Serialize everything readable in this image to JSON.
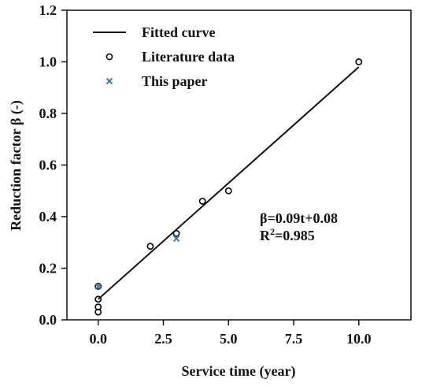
{
  "chart_data": {
    "type": "scatter",
    "xlabel": "Service time (year)",
    "ylabel": "Reduction factor β (-)",
    "xlim": [
      -1.2,
      12.0
    ],
    "ylim": [
      0.0,
      1.2
    ],
    "x_ticks": [
      0.0,
      2.5,
      5.0,
      7.5,
      10.0
    ],
    "x_tick_labels": [
      "0.0",
      "2.5",
      "5.0",
      "7.5",
      "10.0"
    ],
    "y_ticks": [
      0.0,
      0.2,
      0.4,
      0.6,
      0.8,
      1.0,
      1.2
    ],
    "y_tick_labels": [
      "0.0",
      "0.2",
      "0.4",
      "0.6",
      "0.8",
      "1.0",
      "1.2"
    ],
    "grid": false,
    "legend_position": "top-left",
    "fit": {
      "name": "Fitted curve",
      "slope": 0.09,
      "intercept": 0.08,
      "x_range": [
        0,
        10
      ],
      "color": "#000000"
    },
    "series": [
      {
        "name": "Literature data",
        "marker": "circle",
        "color": "#000000",
        "points": [
          {
            "x": 0,
            "y": 0.03
          },
          {
            "x": 0,
            "y": 0.05
          },
          {
            "x": 0,
            "y": 0.08
          },
          {
            "x": 0,
            "y": 0.13
          },
          {
            "x": 2,
            "y": 0.285
          },
          {
            "x": 3,
            "y": 0.335
          },
          {
            "x": 4,
            "y": 0.46
          },
          {
            "x": 5,
            "y": 0.5
          },
          {
            "x": 10,
            "y": 1.0
          }
        ]
      },
      {
        "name": "This paper",
        "marker": "x",
        "color": "#2f7fb5",
        "points": [
          {
            "x": 0,
            "y": 0.13
          },
          {
            "x": 3,
            "y": 0.315
          }
        ]
      }
    ],
    "annotation": {
      "equation": "β=0.09t+0.08",
      "r2_prefix": "R",
      "r2_sup": "2",
      "r2_value": "=0.985"
    }
  }
}
